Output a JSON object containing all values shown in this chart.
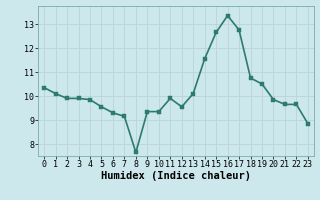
{
  "x": [
    0,
    1,
    2,
    3,
    4,
    5,
    6,
    7,
    8,
    9,
    10,
    11,
    12,
    13,
    14,
    15,
    16,
    17,
    18,
    19,
    20,
    21,
    22,
    23
  ],
  "y": [
    10.35,
    10.1,
    9.9,
    9.9,
    9.85,
    9.55,
    9.3,
    9.15,
    7.65,
    9.35,
    9.35,
    9.9,
    9.55,
    10.1,
    11.55,
    12.65,
    13.35,
    12.75,
    10.75,
    10.5,
    9.85,
    9.65,
    9.65,
    8.85
  ],
  "xlabel": "Humidex (Indice chaleur)",
  "xlim": [
    -0.5,
    23.5
  ],
  "ylim": [
    7.5,
    13.75
  ],
  "yticks": [
    8,
    9,
    10,
    11,
    12,
    13
  ],
  "xticks": [
    0,
    1,
    2,
    3,
    4,
    5,
    6,
    7,
    8,
    9,
    10,
    11,
    12,
    13,
    14,
    15,
    16,
    17,
    18,
    19,
    20,
    21,
    22,
    23
  ],
  "line_color": "#2d7b6c",
  "bg_color": "#cce8ec",
  "grid_color": "#b8d4d8",
  "tick_label_fontsize": 6.0,
  "xlabel_fontsize": 7.5,
  "line_width": 1.2,
  "marker_size": 2.5
}
